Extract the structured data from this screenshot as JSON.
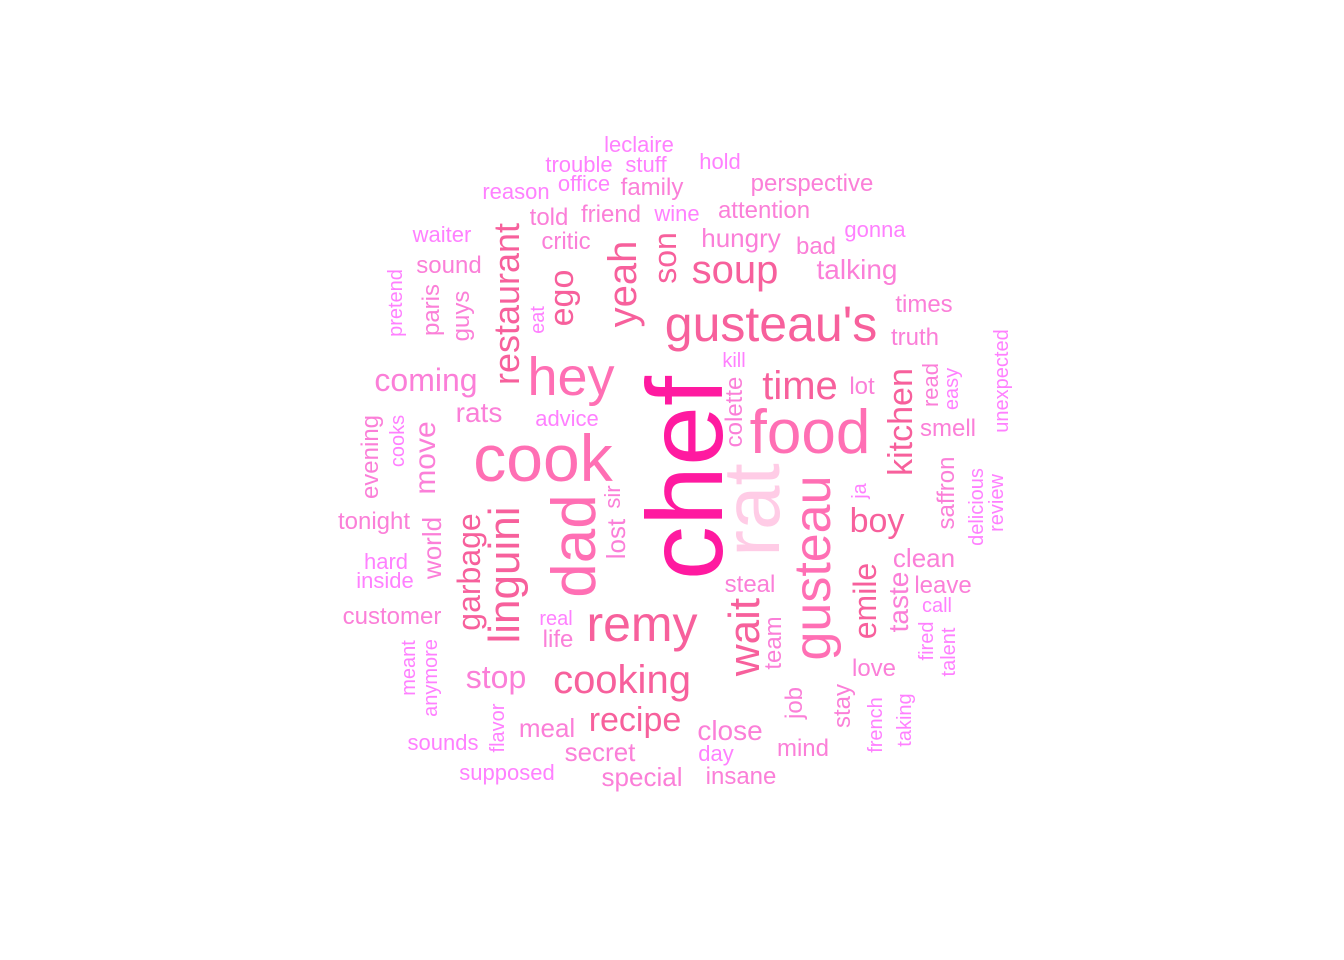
{
  "colors": {
    "c1": "#ff1aa0",
    "c2": "#ff6fb4",
    "c3": "#ffcce6",
    "c4": "#f7609c",
    "c5": "#fb7fd8",
    "c6": "#ff66cc",
    "c7": "#ff80ff"
  },
  "words": [
    {
      "text": "chef",
      "color": "c1"
    },
    {
      "text": "rat",
      "color": "c3"
    },
    {
      "text": "cook",
      "color": "c2"
    },
    {
      "text": "food",
      "color": "c2"
    },
    {
      "text": "dad",
      "color": "c2"
    },
    {
      "text": "hey",
      "color": "c2"
    },
    {
      "text": "gusteau",
      "color": "c2"
    },
    {
      "text": "remy",
      "color": "c4"
    },
    {
      "text": "gusteau's",
      "color": "c4"
    },
    {
      "text": "linguini",
      "color": "c4"
    },
    {
      "text": "wait",
      "color": "c4"
    },
    {
      "text": "yeah",
      "color": "c4"
    },
    {
      "text": "time",
      "color": "c4"
    },
    {
      "text": "soup",
      "color": "c4"
    },
    {
      "text": "cooking",
      "color": "c4"
    },
    {
      "text": "restaurant",
      "color": "c4"
    },
    {
      "text": "recipe",
      "color": "c4"
    },
    {
      "text": "boy",
      "color": "c4"
    },
    {
      "text": "kitchen",
      "color": "c4"
    },
    {
      "text": "ego",
      "color": "c4"
    },
    {
      "text": "emile",
      "color": "c4"
    },
    {
      "text": "garbage",
      "color": "c4"
    },
    {
      "text": "son",
      "color": "c4"
    },
    {
      "text": "coming",
      "color": "c5"
    },
    {
      "text": "stop",
      "color": "c5"
    },
    {
      "text": "move",
      "color": "c5"
    },
    {
      "text": "rats",
      "color": "c5"
    },
    {
      "text": "taste",
      "color": "c5"
    },
    {
      "text": "close",
      "color": "c5"
    },
    {
      "text": "talking",
      "color": "c5"
    },
    {
      "text": "hungry",
      "color": "c5"
    },
    {
      "text": "clean",
      "color": "c5"
    },
    {
      "text": "meal",
      "color": "c5"
    },
    {
      "text": "special",
      "color": "c5"
    },
    {
      "text": "world",
      "color": "c5"
    },
    {
      "text": "secret",
      "color": "c5"
    },
    {
      "text": "lost",
      "color": "c5"
    },
    {
      "text": "tonight",
      "color": "c5"
    },
    {
      "text": "customer",
      "color": "c5"
    },
    {
      "text": "attention",
      "color": "c5"
    },
    {
      "text": "family",
      "color": "c5"
    },
    {
      "text": "friend",
      "color": "c5"
    },
    {
      "text": "critic",
      "color": "c5"
    },
    {
      "text": "told",
      "color": "c5"
    },
    {
      "text": "steal",
      "color": "c5"
    },
    {
      "text": "smell",
      "color": "c5"
    },
    {
      "text": "leave",
      "color": "c5"
    },
    {
      "text": "mind",
      "color": "c5"
    },
    {
      "text": "insane",
      "color": "c5"
    },
    {
      "text": "love",
      "color": "c5"
    },
    {
      "text": "saffron",
      "color": "c5"
    },
    {
      "text": "truth",
      "color": "c5"
    },
    {
      "text": "times",
      "color": "c5"
    },
    {
      "text": "perspective",
      "color": "c5"
    },
    {
      "text": "job",
      "color": "c5"
    },
    {
      "text": "team",
      "color": "c5"
    },
    {
      "text": "sound",
      "color": "c5"
    },
    {
      "text": "guys",
      "color": "c5"
    },
    {
      "text": "paris",
      "color": "c5"
    },
    {
      "text": "colette",
      "color": "c5"
    },
    {
      "text": "evening",
      "color": "c5"
    },
    {
      "text": "life",
      "color": "c5"
    },
    {
      "text": "lot",
      "color": "c5"
    },
    {
      "text": "bad",
      "color": "c5"
    },
    {
      "text": "stay",
      "color": "c5"
    },
    {
      "text": "sir",
      "color": "c5"
    },
    {
      "text": "read",
      "color": "c5"
    },
    {
      "text": "leclaire",
      "color": "c7"
    },
    {
      "text": "trouble",
      "color": "c7"
    },
    {
      "text": "stuff",
      "color": "c7"
    },
    {
      "text": "hold",
      "color": "c7"
    },
    {
      "text": "office",
      "color": "c7"
    },
    {
      "text": "reason",
      "color": "c7"
    },
    {
      "text": "wine",
      "color": "c7"
    },
    {
      "text": "waiter",
      "color": "c7"
    },
    {
      "text": "gonna",
      "color": "c7"
    },
    {
      "text": "pretend",
      "color": "c7"
    },
    {
      "text": "eat",
      "color": "c7"
    },
    {
      "text": "kill",
      "color": "c7"
    },
    {
      "text": "advice",
      "color": "c7"
    },
    {
      "text": "easy",
      "color": "c7"
    },
    {
      "text": "unexpected",
      "color": "c7"
    },
    {
      "text": "cooks",
      "color": "c7"
    },
    {
      "text": "ja",
      "color": "c7"
    },
    {
      "text": "delicious",
      "color": "c7"
    },
    {
      "text": "review",
      "color": "c7"
    },
    {
      "text": "hard",
      "color": "c7"
    },
    {
      "text": "inside",
      "color": "c7"
    },
    {
      "text": "call",
      "color": "c7"
    },
    {
      "text": "real",
      "color": "c7"
    },
    {
      "text": "fired",
      "color": "c7"
    },
    {
      "text": "talent",
      "color": "c7"
    },
    {
      "text": "meant",
      "color": "c7"
    },
    {
      "text": "anymore",
      "color": "c7"
    },
    {
      "text": "flavor",
      "color": "c7"
    },
    {
      "text": "french",
      "color": "c7"
    },
    {
      "text": "taking",
      "color": "c7"
    },
    {
      "text": "sounds",
      "color": "c7"
    },
    {
      "text": "day",
      "color": "c7"
    },
    {
      "text": "supposed",
      "color": "c7"
    }
  ]
}
